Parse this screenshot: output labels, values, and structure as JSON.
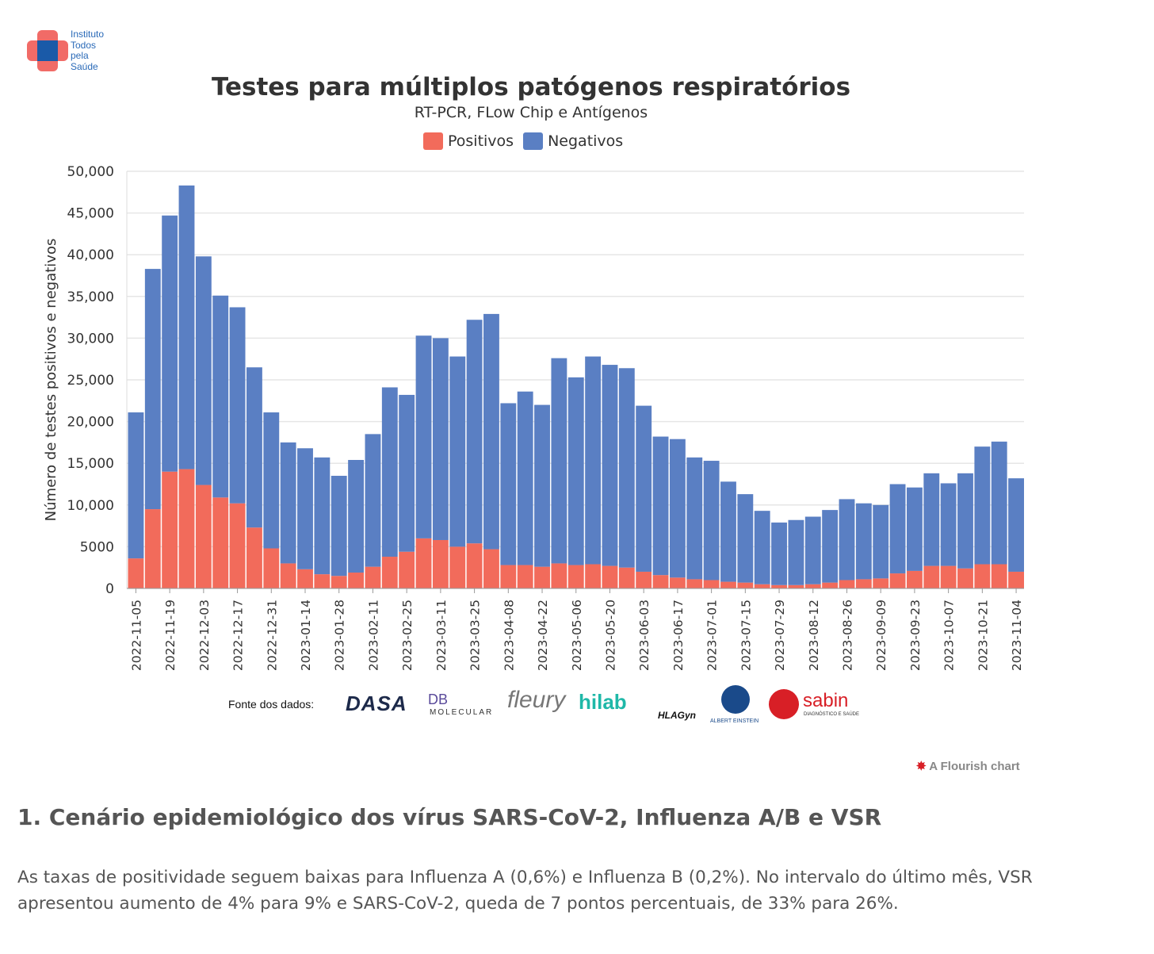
{
  "logo": {
    "lines": [
      "Instituto",
      "Todos",
      "pela",
      "Saúde"
    ]
  },
  "chart_data": {
    "type": "bar",
    "stacked": true,
    "title": "Testes para múltiplos patógenos respiratórios",
    "subtitle": "RT-PCR, FLow Chip e Antígenos",
    "ylabel": "Número de testes positivos e negativos",
    "xlabel": "",
    "ylim": [
      0,
      50000
    ],
    "yticks": [
      "0",
      "5000",
      "10,000",
      "15,000",
      "20,000",
      "25,000",
      "30,000",
      "35,000",
      "40,000",
      "45,000",
      "50,000"
    ],
    "grid": true,
    "legend_placement": "top-center",
    "categories": [
      "2022-11-05",
      "2022-11-12",
      "2022-11-19",
      "2022-11-26",
      "2022-12-03",
      "2022-12-10",
      "2022-12-17",
      "2022-12-24",
      "2022-12-31",
      "2023-01-07",
      "2023-01-14",
      "2023-01-21",
      "2023-01-28",
      "2023-02-04",
      "2023-02-11",
      "2023-02-18",
      "2023-02-25",
      "2023-03-04",
      "2023-03-11",
      "2023-03-18",
      "2023-03-25",
      "2023-04-01",
      "2023-04-08",
      "2023-04-15",
      "2023-04-22",
      "2023-04-29",
      "2023-05-06",
      "2023-05-13",
      "2023-05-20",
      "2023-05-27",
      "2023-06-03",
      "2023-06-10",
      "2023-06-17",
      "2023-06-24",
      "2023-07-01",
      "2023-07-08",
      "2023-07-15",
      "2023-07-22",
      "2023-07-29",
      "2023-08-05",
      "2023-08-12",
      "2023-08-19",
      "2023-08-26",
      "2023-09-02",
      "2023-09-09",
      "2023-09-16",
      "2023-09-23",
      "2023-09-30",
      "2023-10-07",
      "2023-10-14",
      "2023-10-21",
      "2023-10-28",
      "2023-11-04"
    ],
    "xtick_labels": [
      "2022-11-05",
      "2022-11-19",
      "2022-12-03",
      "2022-12-17",
      "2022-12-31",
      "2023-01-14",
      "2023-01-28",
      "2023-02-11",
      "2023-02-25",
      "2023-03-11",
      "2023-03-25",
      "2023-04-08",
      "2023-04-22",
      "2023-05-06",
      "2023-05-20",
      "2023-06-03",
      "2023-06-17",
      "2023-07-01",
      "2023-07-15",
      "2023-07-29",
      "2023-08-12",
      "2023-08-26",
      "2023-09-09",
      "2023-09-23",
      "2023-10-07",
      "2023-10-21",
      "2023-11-04"
    ],
    "series": [
      {
        "name": "Positivos",
        "color": "#f26b5b",
        "values": [
          3600,
          9500,
          14000,
          14300,
          12400,
          10900,
          10200,
          7300,
          4800,
          3000,
          2300,
          1700,
          1500,
          1900,
          2600,
          3800,
          4400,
          6000,
          5800,
          5000,
          5400,
          4700,
          2800,
          2800,
          2600,
          3000,
          2800,
          2900,
          2700,
          2500,
          2000,
          1600,
          1300,
          1100,
          1000,
          800,
          700,
          500,
          400,
          400,
          500,
          700,
          1000,
          1100,
          1200,
          1800,
          2100,
          2700,
          2700,
          2400,
          2900,
          2900,
          2000
        ]
      },
      {
        "name": "Negativos",
        "color": "#5a7fc3",
        "values": [
          17500,
          28800,
          30700,
          34000,
          27400,
          24200,
          23500,
          19200,
          16300,
          14500,
          14500,
          14000,
          12000,
          13500,
          15900,
          20300,
          18800,
          24300,
          24200,
          22800,
          26800,
          28200,
          19400,
          20800,
          19400,
          24600,
          22500,
          24900,
          24100,
          23900,
          19900,
          16600,
          16600,
          14600,
          14300,
          12000,
          10600,
          8800,
          7500,
          7800,
          8100,
          8700,
          9700,
          9100,
          8800,
          10700,
          10000,
          11100,
          9900,
          11400,
          14100,
          14700,
          11200
        ]
      }
    ]
  },
  "sources": {
    "label": "Fonte dos dados:",
    "logos": [
      "DASA",
      "DB",
      "MOLECULAR",
      "fleury",
      "hilab",
      "HLAGyn",
      "ALBERT EINSTEIN",
      "sabin",
      "DIAGNÓSTICO E SAÚDE"
    ]
  },
  "credit": "A Flourish chart",
  "section": {
    "heading": "1. Cenário epidemiológico dos vírus SARS-CoV-2, Influenza A/B e VSR",
    "body": "As taxas de positividade seguem baixas para Influenza A (0,6%) e Influenza B (0,2%). No intervalo do último mês, VSR apresentou aumento de 4% para 9% e SARS-CoV-2, queda de 7 pontos percentuais, de 33% para 26%."
  }
}
